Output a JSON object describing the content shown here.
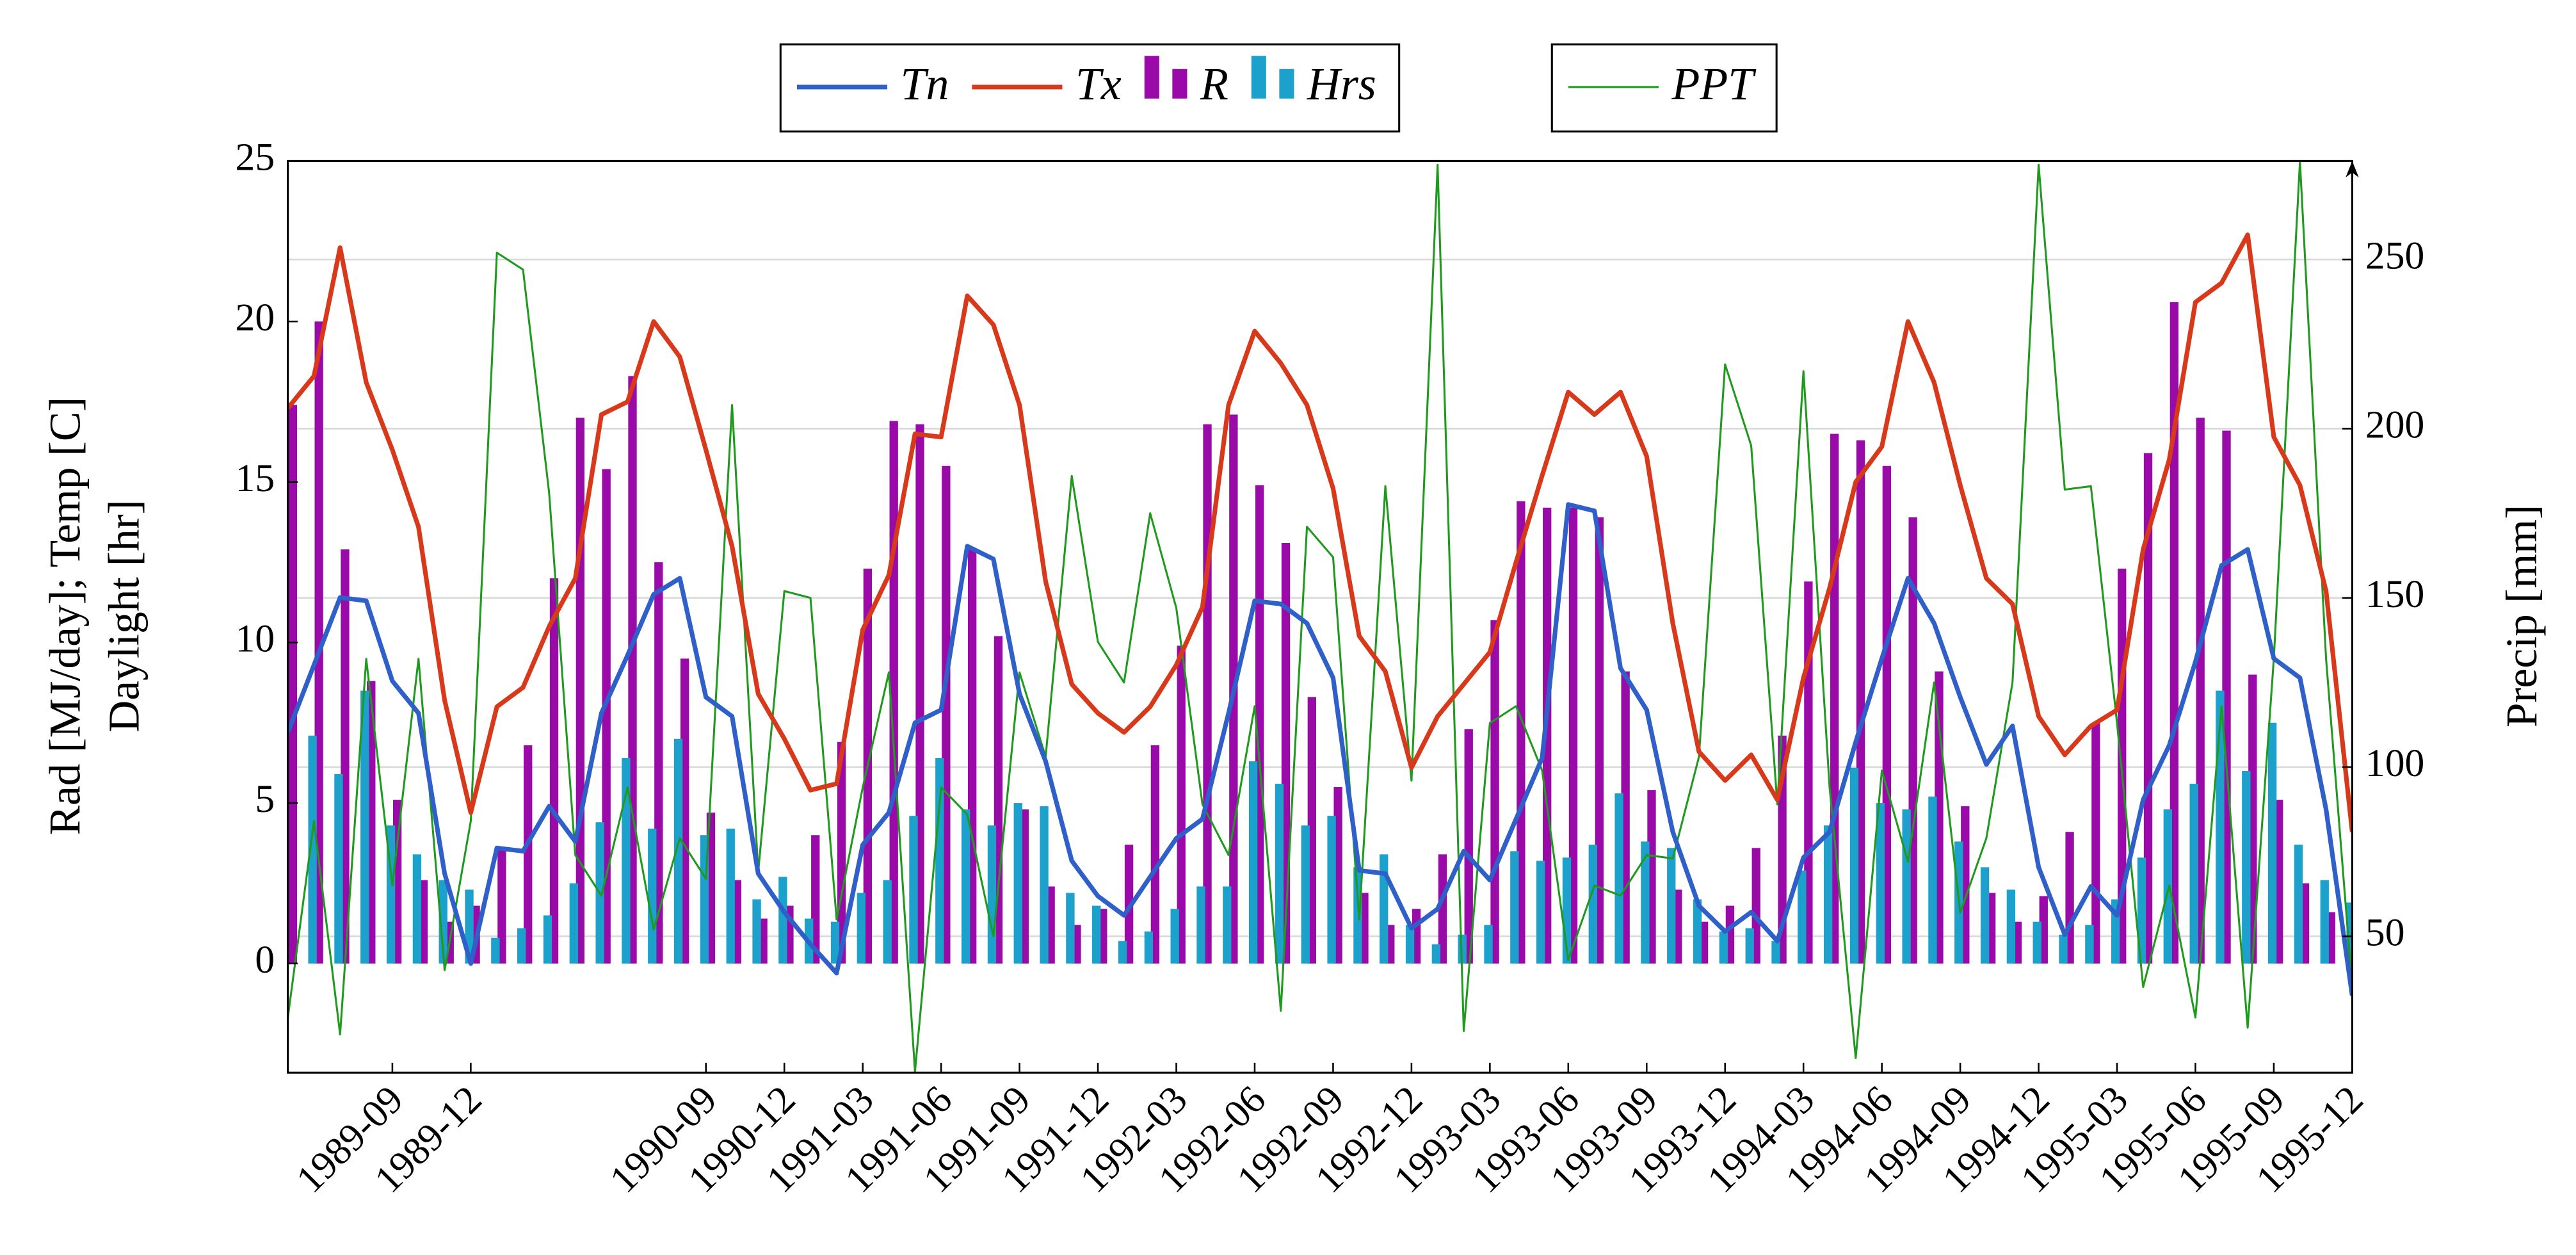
{
  "chart_data": {
    "type": "combo",
    "y_label": [
      "Rad [MJ/day]; Temp [C]",
      "Daylight [hr]"
    ],
    "y2_label": "Precip [mm]",
    "x": [
      "1989-05",
      "1989-06",
      "1989-07",
      "1989-08",
      "1989-09",
      "1989-10",
      "1989-11",
      "1989-12",
      "1990-01",
      "1990-02",
      "1990-03",
      "1990-04",
      "1990-05",
      "1990-06",
      "1990-07",
      "1990-08",
      "1990-09",
      "1990-10",
      "1990-11",
      "1990-12",
      "1991-01",
      "1991-02",
      "1991-03",
      "1991-04",
      "1991-05",
      "1991-06",
      "1991-07",
      "1991-08",
      "1991-09",
      "1991-10",
      "1991-11",
      "1991-12",
      "1992-01",
      "1992-02",
      "1992-03",
      "1992-04",
      "1992-05",
      "1992-06",
      "1992-07",
      "1992-08",
      "1992-09",
      "1992-10",
      "1992-11",
      "1992-12",
      "1993-01",
      "1993-02",
      "1993-03",
      "1993-04",
      "1993-05",
      "1993-06",
      "1993-07",
      "1993-08",
      "1993-09",
      "1993-10",
      "1993-11",
      "1993-12",
      "1994-01",
      "1994-02",
      "1994-03",
      "1994-04",
      "1994-05",
      "1994-06",
      "1994-07",
      "1994-08",
      "1994-09",
      "1994-10",
      "1994-11",
      "1994-12",
      "1995-01",
      "1995-02",
      "1995-03",
      "1995-04",
      "1995-05",
      "1995-06",
      "1995-07",
      "1995-08",
      "1995-09",
      "1995-10",
      "1995-11",
      "1995-12"
    ],
    "xticks": [
      "1989-09",
      "1989-12",
      "1990-09",
      "1990-12",
      "1991-03",
      "1991-06",
      "1991-09",
      "1991-12",
      "1992-03",
      "1992-06",
      "1992-09",
      "1992-12",
      "1993-03",
      "1993-06",
      "1993-09",
      "1993-12",
      "1994-03",
      "1994-06",
      "1994-09",
      "1994-12",
      "1995-03",
      "1995-06",
      "1995-09",
      "1995-12"
    ],
    "ylim": [
      -3.4,
      25
    ],
    "yticks": [
      0,
      5,
      10,
      15,
      20,
      25
    ],
    "y2lim": [
      9.7,
      279.1
    ],
    "y2ticks": [
      50,
      100,
      150,
      200,
      250
    ],
    "grid": "y2",
    "legend": "top",
    "series": [
      {
        "name": "Tn",
        "type": "line",
        "color": "#2f5fc8",
        "values": [
          7.2,
          9.3,
          11.4,
          11.3,
          8.8,
          7.8,
          2.8,
          0.0,
          3.6,
          3.5,
          4.9,
          3.8,
          7.8,
          9.6,
          11.5,
          12.0,
          8.3,
          7.7,
          2.8,
          1.6,
          0.6,
          -0.3,
          3.7,
          4.7,
          7.5,
          7.9,
          13.0,
          12.6,
          8.4,
          6.3,
          3.2,
          2.1,
          1.5,
          2.7,
          3.9,
          4.5,
          7.8,
          11.3,
          11.2,
          10.6,
          8.9,
          2.9,
          2.8,
          1.1,
          1.7,
          3.5,
          2.6,
          4.5,
          6.4,
          14.3,
          14.1,
          9.2,
          7.9,
          4.1,
          1.8,
          1.0,
          1.6,
          0.7,
          3.3,
          4.1,
          6.9,
          9.5,
          12.0,
          10.6,
          8.3,
          6.2,
          7.4,
          3.0,
          0.9,
          2.4,
          1.5,
          5.1,
          6.8,
          9.4,
          12.4,
          12.9,
          9.5,
          8.9,
          4.8,
          -1.0
        ]
      },
      {
        "name": "Tx",
        "type": "line",
        "color": "#d8391a",
        "values": [
          17.3,
          18.3,
          22.3,
          18.1,
          16.0,
          13.6,
          8.2,
          4.7,
          8.0,
          8.6,
          10.5,
          12.0,
          17.1,
          17.5,
          20.0,
          18.9,
          16.0,
          13.0,
          8.4,
          7.0,
          5.4,
          5.6,
          10.4,
          12.1,
          16.5,
          16.4,
          20.8,
          19.9,
          17.4,
          11.9,
          8.7,
          7.8,
          7.2,
          8.0,
          9.3,
          11.1,
          17.4,
          19.7,
          18.7,
          17.4,
          14.8,
          10.2,
          9.1,
          6.1,
          7.7,
          8.7,
          9.7,
          12.5,
          15.2,
          17.8,
          17.1,
          17.8,
          15.8,
          10.6,
          6.6,
          5.7,
          6.5,
          5.1,
          8.9,
          11.7,
          15.0,
          16.1,
          20.0,
          18.1,
          14.9,
          12.0,
          11.2,
          7.7,
          6.5,
          7.4,
          7.9,
          12.9,
          15.7,
          20.6,
          21.2,
          22.7,
          16.4,
          14.9,
          11.6,
          4.1
        ]
      },
      {
        "name": "R",
        "type": "bar",
        "color": "#9a0aa8",
        "values": [
          17.4,
          20.0,
          12.9,
          8.8,
          5.1,
          2.6,
          1.3,
          1.8,
          3.6,
          6.8,
          12.0,
          17.0,
          15.4,
          18.3,
          12.5,
          9.5,
          4.7,
          2.6,
          1.4,
          1.8,
          4.0,
          6.9,
          12.3,
          16.9,
          16.8,
          15.5,
          12.9,
          10.2,
          4.8,
          2.4,
          1.2,
          1.7,
          3.7,
          6.8,
          9.9,
          16.8,
          17.1,
          14.9,
          13.1,
          8.3,
          5.5,
          2.2,
          1.2,
          1.7,
          3.4,
          7.3,
          10.7,
          14.4,
          14.2,
          14.2,
          13.9,
          9.1,
          5.4,
          2.3,
          1.3,
          1.8,
          3.6,
          7.1,
          11.9,
          16.5,
          16.3,
          15.5,
          13.9,
          9.1,
          4.9,
          2.2,
          1.3,
          2.1,
          4.1,
          7.5,
          12.3,
          15.9,
          20.6,
          17.0,
          16.6,
          9.0,
          5.1,
          2.5,
          1.6,
          1.4
        ]
      },
      {
        "name": "Hrs",
        "type": "bar",
        "color": "#1ca0cc",
        "values": [
          7.1,
          5.9,
          8.5,
          4.3,
          3.4,
          2.6,
          2.3,
          0.8,
          1.1,
          1.5,
          2.5,
          4.4,
          6.4,
          4.2,
          7.0,
          4.0,
          4.2,
          2.0,
          2.7,
          1.4,
          1.3,
          2.2,
          2.6,
          4.6,
          6.4,
          4.8,
          4.3,
          5.0,
          4.9,
          2.2,
          1.8,
          0.7,
          1.0,
          1.7,
          2.4,
          2.4,
          6.3,
          5.6,
          4.3,
          4.6,
          3.0,
          3.4,
          1.2,
          0.6,
          0.9,
          1.2,
          3.5,
          3.2,
          3.3,
          3.7,
          5.3,
          3.8,
          3.6,
          2.0,
          1.0,
          1.1,
          0.7,
          2.9,
          4.3,
          6.1,
          5.0,
          4.8,
          5.2,
          3.8,
          3.0,
          2.3,
          1.3,
          0.9,
          1.2,
          2.0,
          3.3,
          4.8,
          5.6,
          8.5,
          6.0,
          7.5,
          3.7,
          2.6,
          1.9,
          0.3
        ]
      },
      {
        "name": "PPT",
        "type": "line",
        "axis": "y2",
        "color": "#1f9a1f",
        "values": [
          26,
          84,
          21,
          132,
          65,
          132,
          40,
          84,
          252,
          247,
          181,
          74,
          62,
          94,
          52,
          79,
          67,
          207,
          69,
          152,
          150,
          55,
          94,
          128,
          10,
          94,
          86,
          50,
          128,
          103,
          186,
          137,
          125,
          175,
          147,
          89,
          74,
          118,
          28,
          171,
          162,
          55,
          183,
          96,
          278,
          22,
          113,
          118,
          99,
          43,
          65,
          62,
          74,
          73,
          103,
          219,
          195,
          89,
          217,
          94,
          14,
          99,
          72,
          125,
          57,
          79,
          125,
          278,
          182,
          183,
          113,
          35,
          65,
          26,
          118,
          23,
          132,
          279,
          132,
          35
        ]
      }
    ]
  }
}
